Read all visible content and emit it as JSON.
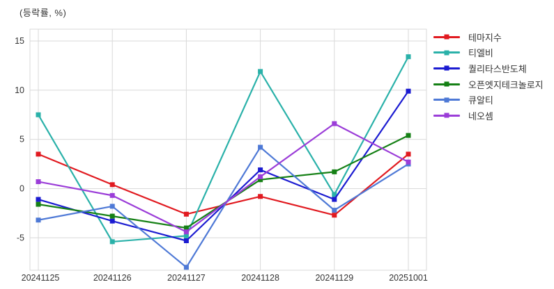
{
  "title": "(등락률, %)",
  "chart_data": {
    "type": "line",
    "title": "",
    "ylabel": "(등락률, %)",
    "xlabel": "",
    "grid": true,
    "legend_position": "right",
    "categories": [
      "20241125",
      "20241126",
      "20241127",
      "20241128",
      "20241129",
      "20251001"
    ],
    "y_ticks": [
      15,
      10,
      5,
      0,
      -5
    ],
    "ylim": [
      -8.3,
      16.2
    ],
    "series": [
      {
        "name": "테마지수",
        "color": "#e11a20",
        "values": [
          3.5,
          0.4,
          -2.6,
          -0.8,
          -2.7,
          3.5
        ]
      },
      {
        "name": "티엘비",
        "color": "#2ab1a9",
        "values": [
          7.5,
          -5.4,
          -4.8,
          11.9,
          -0.6,
          13.4
        ]
      },
      {
        "name": "퀄리타스반도체",
        "color": "#1b1bd1",
        "values": [
          -1.1,
          -3.3,
          -5.3,
          1.9,
          -1.1,
          9.9
        ]
      },
      {
        "name": "오픈엣지테크놀로지",
        "color": "#158015",
        "values": [
          -1.6,
          -2.8,
          -4.0,
          0.9,
          1.7,
          5.4
        ]
      },
      {
        "name": "큐알티",
        "color": "#4e79d6",
        "values": [
          -3.2,
          -1.8,
          -8.0,
          4.2,
          -2.2,
          2.5
        ]
      },
      {
        "name": "네오셈",
        "color": "#9b3dd8",
        "values": [
          0.7,
          -0.7,
          -4.4,
          1.2,
          6.6,
          2.7
        ]
      }
    ]
  },
  "colors": {
    "grid": "#d9d9d9",
    "tick_text": "#333333",
    "background": "#ffffff"
  }
}
